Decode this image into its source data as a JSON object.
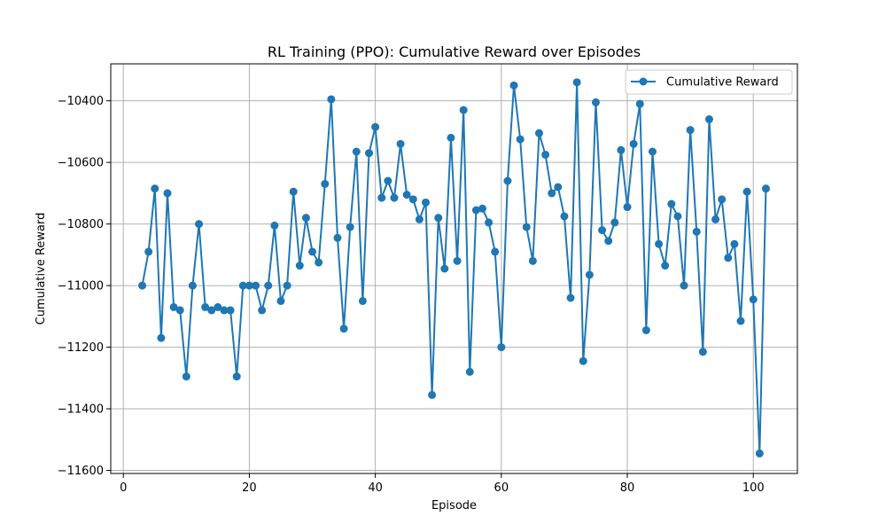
{
  "chart_data": {
    "type": "line",
    "title": "RL Training (PPO): Cumulative Reward over Episodes",
    "xlabel": "Episode",
    "ylabel": "Cumulative Reward",
    "xlim": [
      -2,
      107
    ],
    "ylim": [
      -11610,
      -10280
    ],
    "x_ticks": [
      0,
      20,
      40,
      60,
      80,
      100
    ],
    "y_ticks": [
      -11600,
      -11400,
      -11200,
      -11000,
      -10800,
      -10600,
      -10400
    ],
    "grid": true,
    "legend_position": "top-right",
    "colors": {
      "series": "#1f77b4",
      "grid": "#b0b0b0"
    },
    "series": [
      {
        "name": "Cumulative Reward",
        "marker": "circle",
        "x": [
          3,
          4,
          5,
          6,
          7,
          8,
          9,
          10,
          11,
          12,
          13,
          14,
          15,
          16,
          17,
          18,
          19,
          20,
          21,
          22,
          23,
          24,
          25,
          26,
          27,
          28,
          29,
          30,
          31,
          32,
          33,
          34,
          35,
          36,
          37,
          38,
          39,
          40,
          41,
          42,
          43,
          44,
          45,
          46,
          47,
          48,
          49,
          50,
          51,
          52,
          53,
          54,
          55,
          56,
          57,
          58,
          59,
          60,
          61,
          62,
          63,
          64,
          65,
          66,
          67,
          68,
          69,
          70,
          71,
          72,
          73,
          74,
          75,
          76,
          77,
          78,
          79,
          80,
          81,
          82,
          83,
          84,
          85,
          86,
          87,
          88,
          89,
          90,
          91,
          92,
          93,
          94,
          95,
          96,
          97,
          98,
          99,
          100,
          101,
          102
        ],
        "values": [
          -11000,
          -10890,
          -10685,
          -11170,
          -10700,
          -11070,
          -11080,
          -11295,
          -11000,
          -10800,
          -11070,
          -11080,
          -11070,
          -11080,
          -11080,
          -11295,
          -11000,
          -11000,
          -11000,
          -11080,
          -11000,
          -10805,
          -11050,
          -11000,
          -10695,
          -10935,
          -10780,
          -10890,
          -10925,
          -10670,
          -10395,
          -10845,
          -11140,
          -10810,
          -10565,
          -11050,
          -10570,
          -10485,
          -10715,
          -10660,
          -10715,
          -10540,
          -10705,
          -10720,
          -10785,
          -10730,
          -11355,
          -10780,
          -10945,
          -10520,
          -10920,
          -10430,
          -11280,
          -10755,
          -10750,
          -10795,
          -10890,
          -11200,
          -10660,
          -10350,
          -10525,
          -10810,
          -10920,
          -10505,
          -10575,
          -10700,
          -10680,
          -10775,
          -11040,
          -10340,
          -11245,
          -10965,
          -10405,
          -10820,
          -10855,
          -10795,
          -10560,
          -10745,
          -10540,
          -10410,
          -11145,
          -10565,
          -10865,
          -10935,
          -10735,
          -10775,
          -11000,
          -10495,
          -10825,
          -11215,
          -10460,
          -10785,
          -10720,
          -10910,
          -10865,
          -11115,
          -10695,
          -11045,
          -11545,
          -10685
        ]
      }
    ]
  }
}
